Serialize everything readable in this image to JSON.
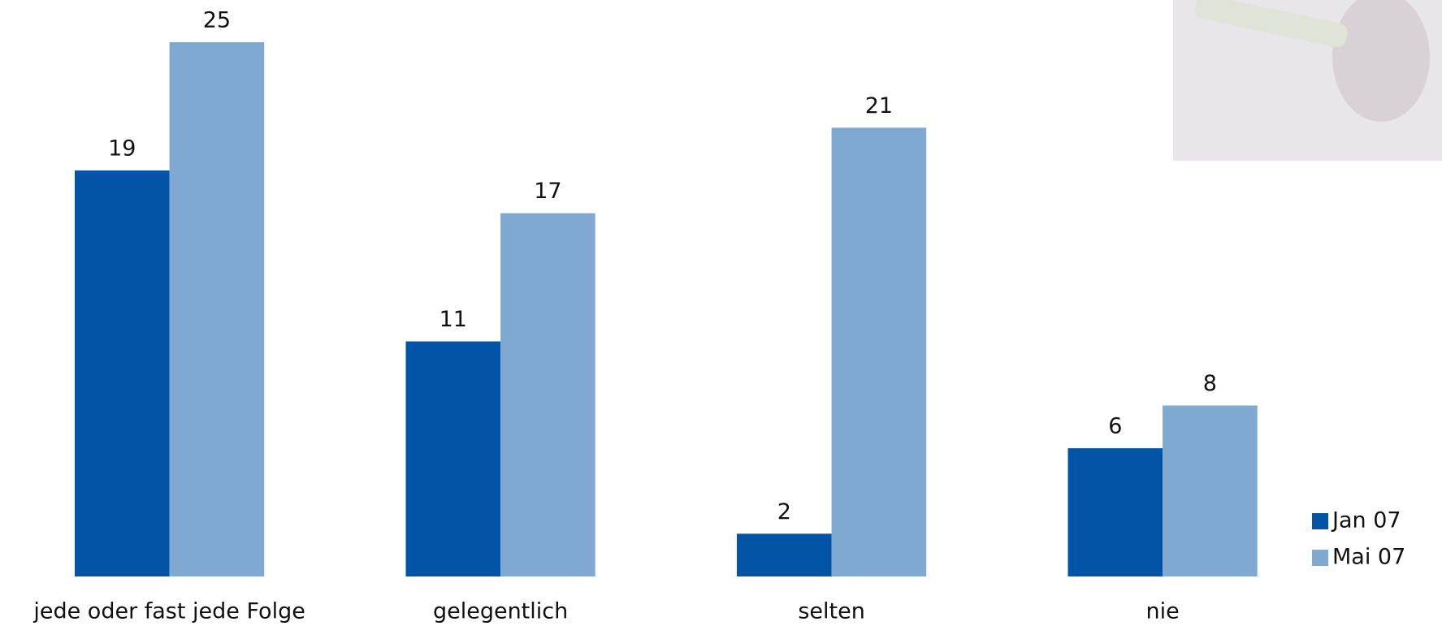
{
  "chart_data": {
    "type": "bar",
    "categories": [
      "jede oder fast jede Folge",
      "gelegentlich",
      "selten",
      "nie"
    ],
    "series": [
      {
        "name": "Jan 07",
        "color": "#0254a6",
        "values": [
          19,
          11,
          2,
          6
        ]
      },
      {
        "name": "Mai 07",
        "color": "#80a9d2",
        "values": [
          25,
          17,
          21,
          8
        ]
      }
    ],
    "ylim": [
      0,
      25
    ]
  }
}
